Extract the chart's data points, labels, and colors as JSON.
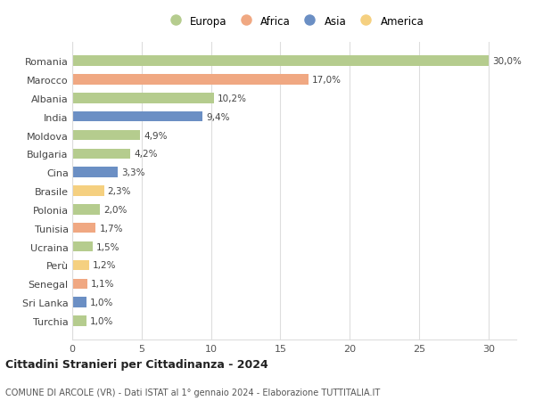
{
  "countries": [
    "Romania",
    "Marocco",
    "Albania",
    "India",
    "Moldova",
    "Bulgaria",
    "Cina",
    "Brasile",
    "Polonia",
    "Tunisia",
    "Ucraina",
    "Perù",
    "Senegal",
    "Sri Lanka",
    "Turchia"
  ],
  "values": [
    30.0,
    17.0,
    10.2,
    9.4,
    4.9,
    4.2,
    3.3,
    2.3,
    2.0,
    1.7,
    1.5,
    1.2,
    1.1,
    1.0,
    1.0
  ],
  "labels": [
    "30,0%",
    "17,0%",
    "10,2%",
    "9,4%",
    "4,9%",
    "4,2%",
    "3,3%",
    "2,3%",
    "2,0%",
    "1,7%",
    "1,5%",
    "1,2%",
    "1,1%",
    "1,0%",
    "1,0%"
  ],
  "continents": [
    "Europa",
    "Africa",
    "Europa",
    "Asia",
    "Europa",
    "Europa",
    "Asia",
    "America",
    "Europa",
    "Africa",
    "Europa",
    "America",
    "Africa",
    "Asia",
    "Europa"
  ],
  "colors": {
    "Europa": "#b5cc8e",
    "Africa": "#f0a882",
    "Asia": "#6b8fc4",
    "America": "#f5d080"
  },
  "legend_order": [
    "Europa",
    "Africa",
    "Asia",
    "America"
  ],
  "title": "Cittadini Stranieri per Cittadinanza - 2024",
  "subtitle": "COMUNE DI ARCOLE (VR) - Dati ISTAT al 1° gennaio 2024 - Elaborazione TUTTITALIA.IT",
  "xlim": [
    0,
    32
  ],
  "xticks": [
    0,
    5,
    10,
    15,
    20,
    25,
    30
  ],
  "background_color": "#ffffff",
  "grid_color": "#dddddd",
  "bar_height": 0.55
}
